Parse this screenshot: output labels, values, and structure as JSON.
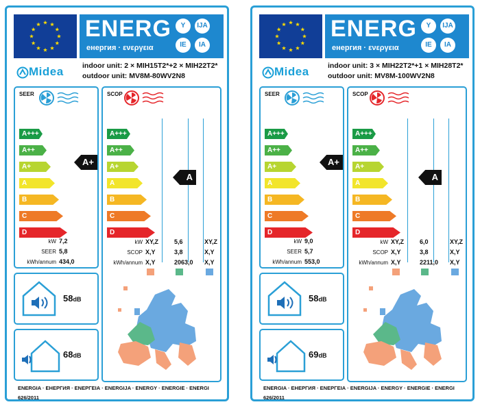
{
  "energy_title": "ENERG",
  "energy_subtitle": "енергия · ενεργεια",
  "languages": [
    "Y",
    "IJA",
    "IE",
    "IA"
  ],
  "brand": "Midea",
  "seer_title": "SEER",
  "scop_title": "SCOP",
  "classes": [
    "A+++",
    "A++",
    "A+",
    "A",
    "B",
    "C",
    "D"
  ],
  "class_colors": [
    "#1a9b46",
    "#4bb147",
    "#b7d531",
    "#f2e52b",
    "#f5b723",
    "#ee7a27",
    "#e5262a"
  ],
  "row_labels": {
    "kw": "kW",
    "seer": "SEER",
    "scop": "SCOP",
    "kwh": "kWh/annum"
  },
  "climate_headers": [
    "XY,Z",
    "X,Y",
    "X,Y"
  ],
  "swatch_colors": [
    "#f4a17a",
    "#5bb88a",
    "#6aa9e0"
  ],
  "footer_text": "ENERGIA · ЕНЕРГИЯ · ΕΝΕΡΓΕΙΑ · ENERGIJA · ENERGY · ENERGIE · ENERGI",
  "regulation": "626/2011",
  "db_unit": "dB",
  "labels": [
    {
      "indoor_line": "indoor unit: 2 × MIH15T2*+2 × MIH22T2*",
      "outdoor_line": "outdoor unit: MV8M-80WV2N8",
      "seer_rating": "A+",
      "seer_kw": "7,2",
      "seer_value": "5,8",
      "seer_kwh": "434,0",
      "scop_rating": "A",
      "scop_kw": "5,6",
      "scop_value": "3,8",
      "scop_kwh": "2063,0",
      "indoor_db": "58",
      "outdoor_db": "68"
    },
    {
      "indoor_line": "indoor unit: 3 × MIH22T2*+1 × MIH28T2*",
      "outdoor_line": "outdoor unit: MV8M-100WV2N8",
      "seer_rating": "A+",
      "seer_kw": "9,0",
      "seer_value": "5,7",
      "seer_kwh": "553,0",
      "scop_rating": "A",
      "scop_kw": "6,0",
      "scop_value": "3,8",
      "scop_kwh": "2211,0",
      "indoor_db": "58",
      "outdoor_db": "69"
    }
  ]
}
